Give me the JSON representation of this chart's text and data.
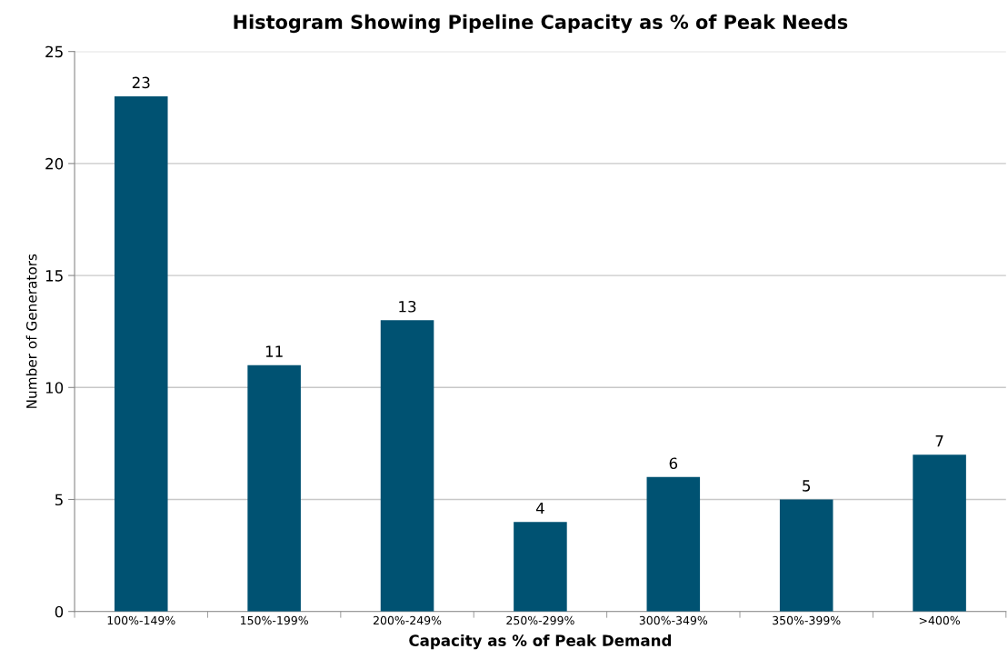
{
  "chart_data": {
    "type": "bar",
    "title": "Histogram Showing Pipeline Capacity as % of Peak Needs",
    "xlabel": "Capacity as % of Peak Demand",
    "ylabel": "Number of Generators",
    "categories": [
      "100%-149%",
      "150%-199%",
      "200%-249%",
      "250%-299%",
      "300%-349%",
      "350%-399%",
      ">400%"
    ],
    "values": [
      23,
      11,
      13,
      4,
      6,
      5,
      7
    ],
    "color": "#005272",
    "ylim": [
      0,
      25
    ],
    "yticks": [
      0,
      5,
      10,
      15,
      20,
      25
    ],
    "grid": "y",
    "data_labels": true
  }
}
